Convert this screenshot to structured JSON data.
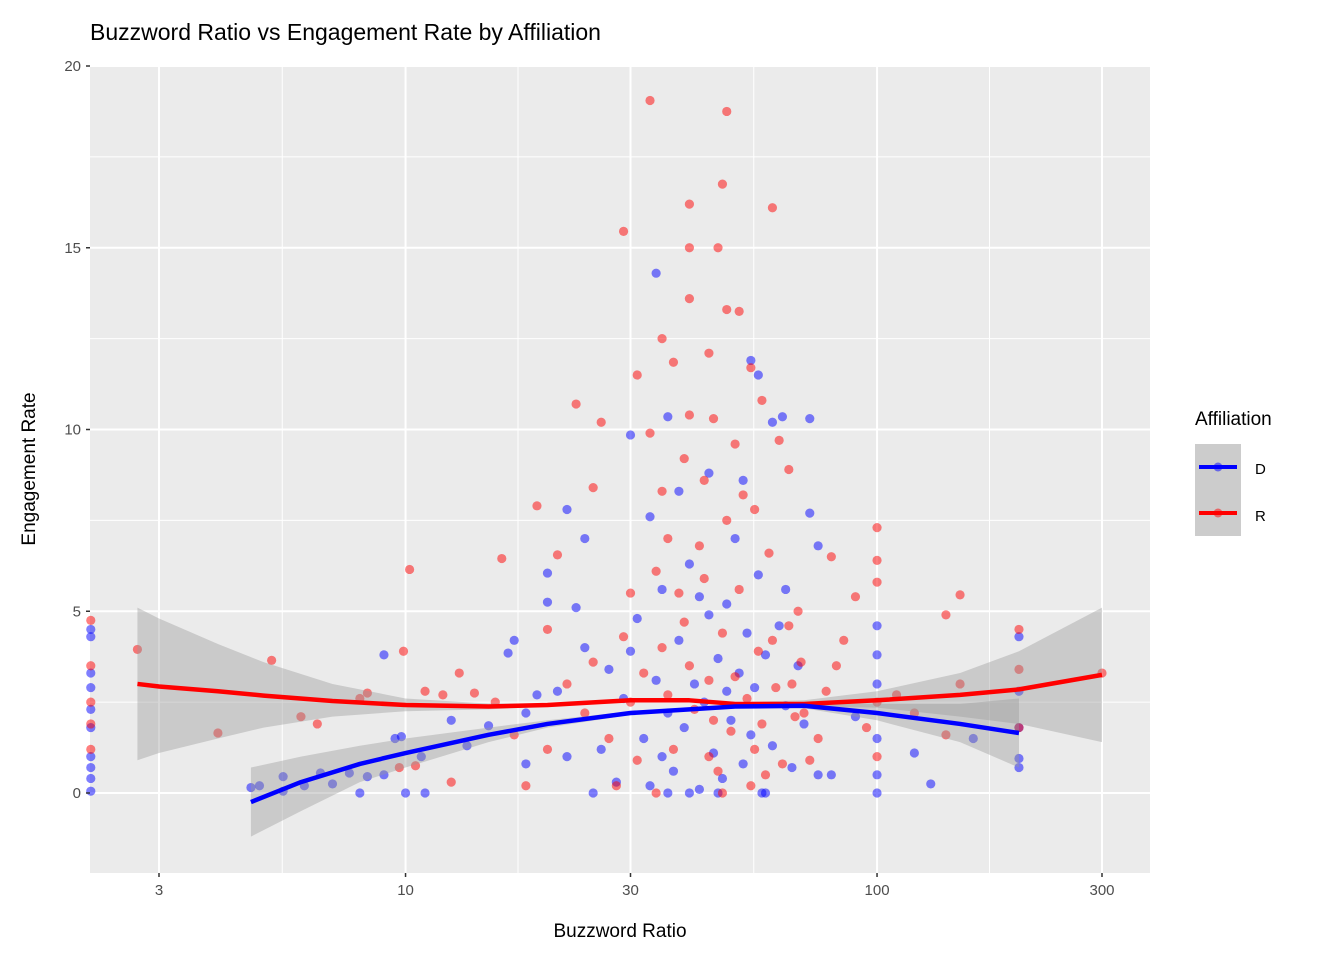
{
  "chart_data": {
    "type": "scatter",
    "title": "Buzzword Ratio vs Engagement Rate by Affiliation",
    "xlabel": "Buzzword Ratio",
    "ylabel": "Engagement Rate",
    "x_scale": "log10",
    "xlim": [
      2.15,
      379
    ],
    "ylim": [
      -2.2,
      20.1
    ],
    "x_ticks": [
      3,
      10,
      30,
      100,
      300
    ],
    "x_tick_labels": [
      "3",
      "10",
      "30",
      "100",
      "300"
    ],
    "y_ticks": [
      0,
      5,
      10,
      15,
      20
    ],
    "y_tick_labels": [
      "0",
      "5",
      "10",
      "15",
      "20"
    ],
    "grid": true,
    "legend": {
      "title": "Affiliation",
      "position": "right",
      "entries": [
        "D",
        "R"
      ]
    },
    "series": [
      {
        "name": "D",
        "color": "#0000ff",
        "points": [
          [
            2.15,
            4.5
          ],
          [
            2.15,
            4.3
          ],
          [
            2.15,
            3.3
          ],
          [
            2.15,
            2.9
          ],
          [
            2.15,
            2.3
          ],
          [
            2.15,
            1.8
          ],
          [
            2.15,
            1.0
          ],
          [
            2.15,
            0.7
          ],
          [
            2.15,
            0.4
          ],
          [
            2.15,
            0.05
          ],
          [
            4.7,
            0.15
          ],
          [
            4.9,
            0.2
          ],
          [
            5.5,
            0.45
          ],
          [
            5.5,
            0.05
          ],
          [
            6.1,
            0.2
          ],
          [
            6.6,
            0.55
          ],
          [
            7,
            0.25
          ],
          [
            7.6,
            0.55
          ],
          [
            8,
            0.0
          ],
          [
            8.3,
            0.45
          ],
          [
            9,
            3.8
          ],
          [
            9,
            0.5
          ],
          [
            9.5,
            1.5
          ],
          [
            9.8,
            1.55
          ],
          [
            10,
            0.0
          ],
          [
            11,
            0.0
          ],
          [
            10.8,
            1.0
          ],
          [
            12.5,
            2.0
          ],
          [
            13.5,
            1.3
          ],
          [
            15,
            1.85
          ],
          [
            16.5,
            3.85
          ],
          [
            17,
            4.2
          ],
          [
            18,
            0.8
          ],
          [
            19,
            2.7
          ],
          [
            20,
            6.05
          ],
          [
            20,
            5.25
          ],
          [
            22,
            7.8
          ],
          [
            23,
            5.1
          ],
          [
            24,
            7.0
          ],
          [
            30,
            9.85
          ],
          [
            34,
            14.3
          ],
          [
            36,
            10.35
          ],
          [
            54,
            11.9
          ],
          [
            56,
            11.5
          ],
          [
            63,
            10.35
          ],
          [
            60,
            10.2
          ],
          [
            72,
            10.3
          ],
          [
            75,
            6.8
          ],
          [
            72,
            7.7
          ],
          [
            100,
            4.6
          ],
          [
            100,
            3.8
          ],
          [
            100,
            3.0
          ],
          [
            100,
            1.5
          ],
          [
            100,
            0.5
          ],
          [
            100,
            0.0
          ],
          [
            90,
            2.1
          ],
          [
            120,
            1.1
          ],
          [
            130,
            0.25
          ],
          [
            160,
            1.5
          ],
          [
            200,
            4.3
          ],
          [
            200,
            2.8
          ],
          [
            200,
            1.8
          ],
          [
            200,
            0.95
          ],
          [
            200,
            0.7
          ],
          [
            80,
            0.5
          ],
          [
            75,
            0.5
          ],
          [
            26,
            1.2
          ],
          [
            27,
            3.4
          ],
          [
            28,
            0.3
          ],
          [
            29,
            2.6
          ],
          [
            31,
            4.8
          ],
          [
            32,
            1.5
          ],
          [
            33,
            0.2
          ],
          [
            34,
            3.1
          ],
          [
            35,
            5.6
          ],
          [
            36,
            2.2
          ],
          [
            37,
            0.6
          ],
          [
            38,
            4.2
          ],
          [
            39,
            1.8
          ],
          [
            40,
            6.3
          ],
          [
            41,
            3.0
          ],
          [
            42,
            0.1
          ],
          [
            43,
            2.5
          ],
          [
            44,
            4.9
          ],
          [
            45,
            1.1
          ],
          [
            46,
            3.7
          ],
          [
            47,
            0.4
          ],
          [
            48,
            5.2
          ],
          [
            49,
            2.0
          ],
          [
            50,
            7.0
          ],
          [
            51,
            3.3
          ],
          [
            52,
            0.8
          ],
          [
            53,
            4.4
          ],
          [
            54,
            1.6
          ],
          [
            55,
            2.9
          ],
          [
            56,
            6.0
          ],
          [
            57,
            0.0
          ],
          [
            58,
            3.8
          ],
          [
            60,
            1.3
          ],
          [
            62,
            4.6
          ],
          [
            64,
            2.4
          ],
          [
            66,
            0.7
          ],
          [
            68,
            3.5
          ],
          [
            70,
            1.9
          ],
          [
            38,
            8.3
          ],
          [
            44,
            8.8
          ],
          [
            52,
            8.6
          ],
          [
            33,
            7.6
          ],
          [
            46,
            0.0
          ],
          [
            40,
            0.0
          ],
          [
            36,
            0.0
          ],
          [
            58,
            0.0
          ],
          [
            25,
            0.0
          ],
          [
            30,
            3.9
          ],
          [
            42,
            5.4
          ],
          [
            48,
            2.8
          ],
          [
            35,
            1.0
          ],
          [
            64,
            5.6
          ],
          [
            22,
            1.0
          ],
          [
            21,
            2.8
          ],
          [
            18,
            2.2
          ],
          [
            24,
            4.0
          ]
        ]
      },
      {
        "name": "R",
        "color": "#ff0000",
        "points": [
          [
            2.7,
            3.95
          ],
          [
            4.0,
            1.65
          ],
          [
            5.2,
            3.65
          ],
          [
            10.2,
            6.15
          ],
          [
            9.9,
            3.9
          ],
          [
            2.15,
            4.75
          ],
          [
            2.15,
            3.5
          ],
          [
            2.15,
            2.5
          ],
          [
            2.15,
            1.9
          ],
          [
            2.15,
            1.2
          ],
          [
            12,
            2.7
          ],
          [
            13,
            3.3
          ],
          [
            16,
            6.45
          ],
          [
            19,
            7.9
          ],
          [
            21,
            6.55
          ],
          [
            23,
            10.7
          ],
          [
            25,
            8.4
          ],
          [
            26,
            10.2
          ],
          [
            29,
            15.45
          ],
          [
            33,
            19.05
          ],
          [
            40,
            16.2
          ],
          [
            40,
            15.0
          ],
          [
            46,
            15.0
          ],
          [
            47,
            16.75
          ],
          [
            48,
            18.75
          ],
          [
            60,
            16.1
          ],
          [
            40,
            13.6
          ],
          [
            48,
            13.3
          ],
          [
            51,
            13.25
          ],
          [
            35,
            12.5
          ],
          [
            37,
            11.85
          ],
          [
            31,
            11.5
          ],
          [
            44,
            12.1
          ],
          [
            54,
            11.7
          ],
          [
            57,
            10.8
          ],
          [
            40,
            10.4
          ],
          [
            45,
            10.3
          ],
          [
            65,
            8.9
          ],
          [
            100,
            7.3
          ],
          [
            100,
            6.4
          ],
          [
            100,
            5.8
          ],
          [
            150,
            5.45
          ],
          [
            140,
            4.9
          ],
          [
            200,
            4.5
          ],
          [
            200,
            3.4
          ],
          [
            300,
            3.3
          ],
          [
            150,
            3.0
          ],
          [
            120,
            2.2
          ],
          [
            140,
            1.6
          ],
          [
            200,
            1.8
          ],
          [
            110,
            2.7
          ],
          [
            90,
            5.4
          ],
          [
            85,
            4.2
          ],
          [
            80,
            6.5
          ],
          [
            6,
            2.1
          ],
          [
            6.5,
            1.9
          ],
          [
            8,
            2.6
          ],
          [
            8.3,
            2.75
          ],
          [
            9.7,
            0.7
          ],
          [
            10.5,
            0.75
          ],
          [
            11,
            2.8
          ],
          [
            12.5,
            0.3
          ],
          [
            14,
            2.75
          ],
          [
            15.5,
            2.5
          ],
          [
            18,
            0.2
          ],
          [
            20,
            4.5
          ],
          [
            25,
            3.6
          ],
          [
            30,
            2.5
          ],
          [
            35,
            4.0
          ],
          [
            40,
            3.5
          ],
          [
            45,
            2.0
          ],
          [
            50,
            3.2
          ],
          [
            55,
            1.2
          ],
          [
            60,
            4.2
          ],
          [
            70,
            2.2
          ],
          [
            28,
            0.2
          ],
          [
            38,
            5.5
          ],
          [
            42,
            6.8
          ],
          [
            48,
            7.5
          ],
          [
            52,
            8.2
          ],
          [
            33,
            9.9
          ],
          [
            62,
            9.7
          ],
          [
            36,
            7.0
          ],
          [
            44,
            1.0
          ],
          [
            58,
            0.5
          ],
          [
            66,
            3.0
          ],
          [
            75,
            1.5
          ],
          [
            30,
            5.5
          ],
          [
            34,
            0.0
          ],
          [
            47,
            0.0
          ],
          [
            68,
            5.0
          ],
          [
            24,
            2.2
          ],
          [
            27,
            1.5
          ],
          [
            29,
            4.3
          ],
          [
            31,
            0.9
          ],
          [
            32,
            3.3
          ],
          [
            34,
            6.1
          ],
          [
            36,
            2.7
          ],
          [
            37,
            1.2
          ],
          [
            39,
            4.7
          ],
          [
            41,
            2.3
          ],
          [
            43,
            5.9
          ],
          [
            44,
            3.1
          ],
          [
            46,
            0.6
          ],
          [
            47,
            4.4
          ],
          [
            49,
            1.7
          ],
          [
            51,
            5.6
          ],
          [
            53,
            2.6
          ],
          [
            54,
            0.2
          ],
          [
            56,
            3.9
          ],
          [
            57,
            1.9
          ],
          [
            59,
            6.6
          ],
          [
            61,
            2.9
          ],
          [
            63,
            0.8
          ],
          [
            65,
            4.6
          ],
          [
            67,
            2.1
          ],
          [
            69,
            3.6
          ],
          [
            72,
            0.9
          ],
          [
            78,
            2.8
          ],
          [
            82,
            3.5
          ],
          [
            95,
            1.8
          ],
          [
            39,
            9.2
          ],
          [
            43,
            8.6
          ],
          [
            50,
            9.6
          ],
          [
            55,
            7.8
          ],
          [
            35,
            8.3
          ],
          [
            20,
            1.2
          ],
          [
            22,
            3.0
          ],
          [
            17,
            1.6
          ],
          [
            100,
            1.0
          ],
          [
            100,
            2.5
          ]
        ]
      }
    ],
    "smooth": [
      {
        "name": "R",
        "color": "#ff0000",
        "x": [
          2.7,
          3,
          4,
          5,
          7,
          10,
          15,
          20,
          30,
          40,
          50,
          70,
          100,
          150,
          200,
          300
        ],
        "y": [
          3.0,
          2.93,
          2.8,
          2.68,
          2.53,
          2.42,
          2.38,
          2.42,
          2.55,
          2.55,
          2.45,
          2.45,
          2.55,
          2.7,
          2.85,
          3.25
        ],
        "lower": [
          0.9,
          1.1,
          1.5,
          1.8,
          2.1,
          2.25,
          2.3,
          2.38,
          2.5,
          2.5,
          2.4,
          2.38,
          2.35,
          2.1,
          1.9,
          1.4
        ],
        "upper": [
          5.1,
          4.8,
          4.1,
          3.6,
          3.0,
          2.6,
          2.46,
          2.46,
          2.6,
          2.6,
          2.5,
          2.55,
          2.8,
          3.3,
          3.9,
          5.1
        ]
      },
      {
        "name": "D",
        "color": "#0000ff",
        "x": [
          4.7,
          6,
          8,
          10,
          15,
          20,
          30,
          40,
          50,
          70,
          100,
          150,
          200
        ],
        "y": [
          -0.25,
          0.3,
          0.8,
          1.1,
          1.6,
          1.9,
          2.2,
          2.3,
          2.38,
          2.4,
          2.2,
          1.9,
          1.65
        ],
        "lower": [
          -1.2,
          -0.5,
          0.3,
          0.7,
          1.4,
          1.8,
          2.15,
          2.27,
          2.33,
          2.33,
          2.0,
          1.4,
          0.7
        ],
        "upper": [
          0.7,
          1.0,
          1.3,
          1.5,
          1.8,
          2.0,
          2.25,
          2.33,
          2.42,
          2.48,
          2.45,
          2.45,
          2.6
        ]
      }
    ]
  }
}
